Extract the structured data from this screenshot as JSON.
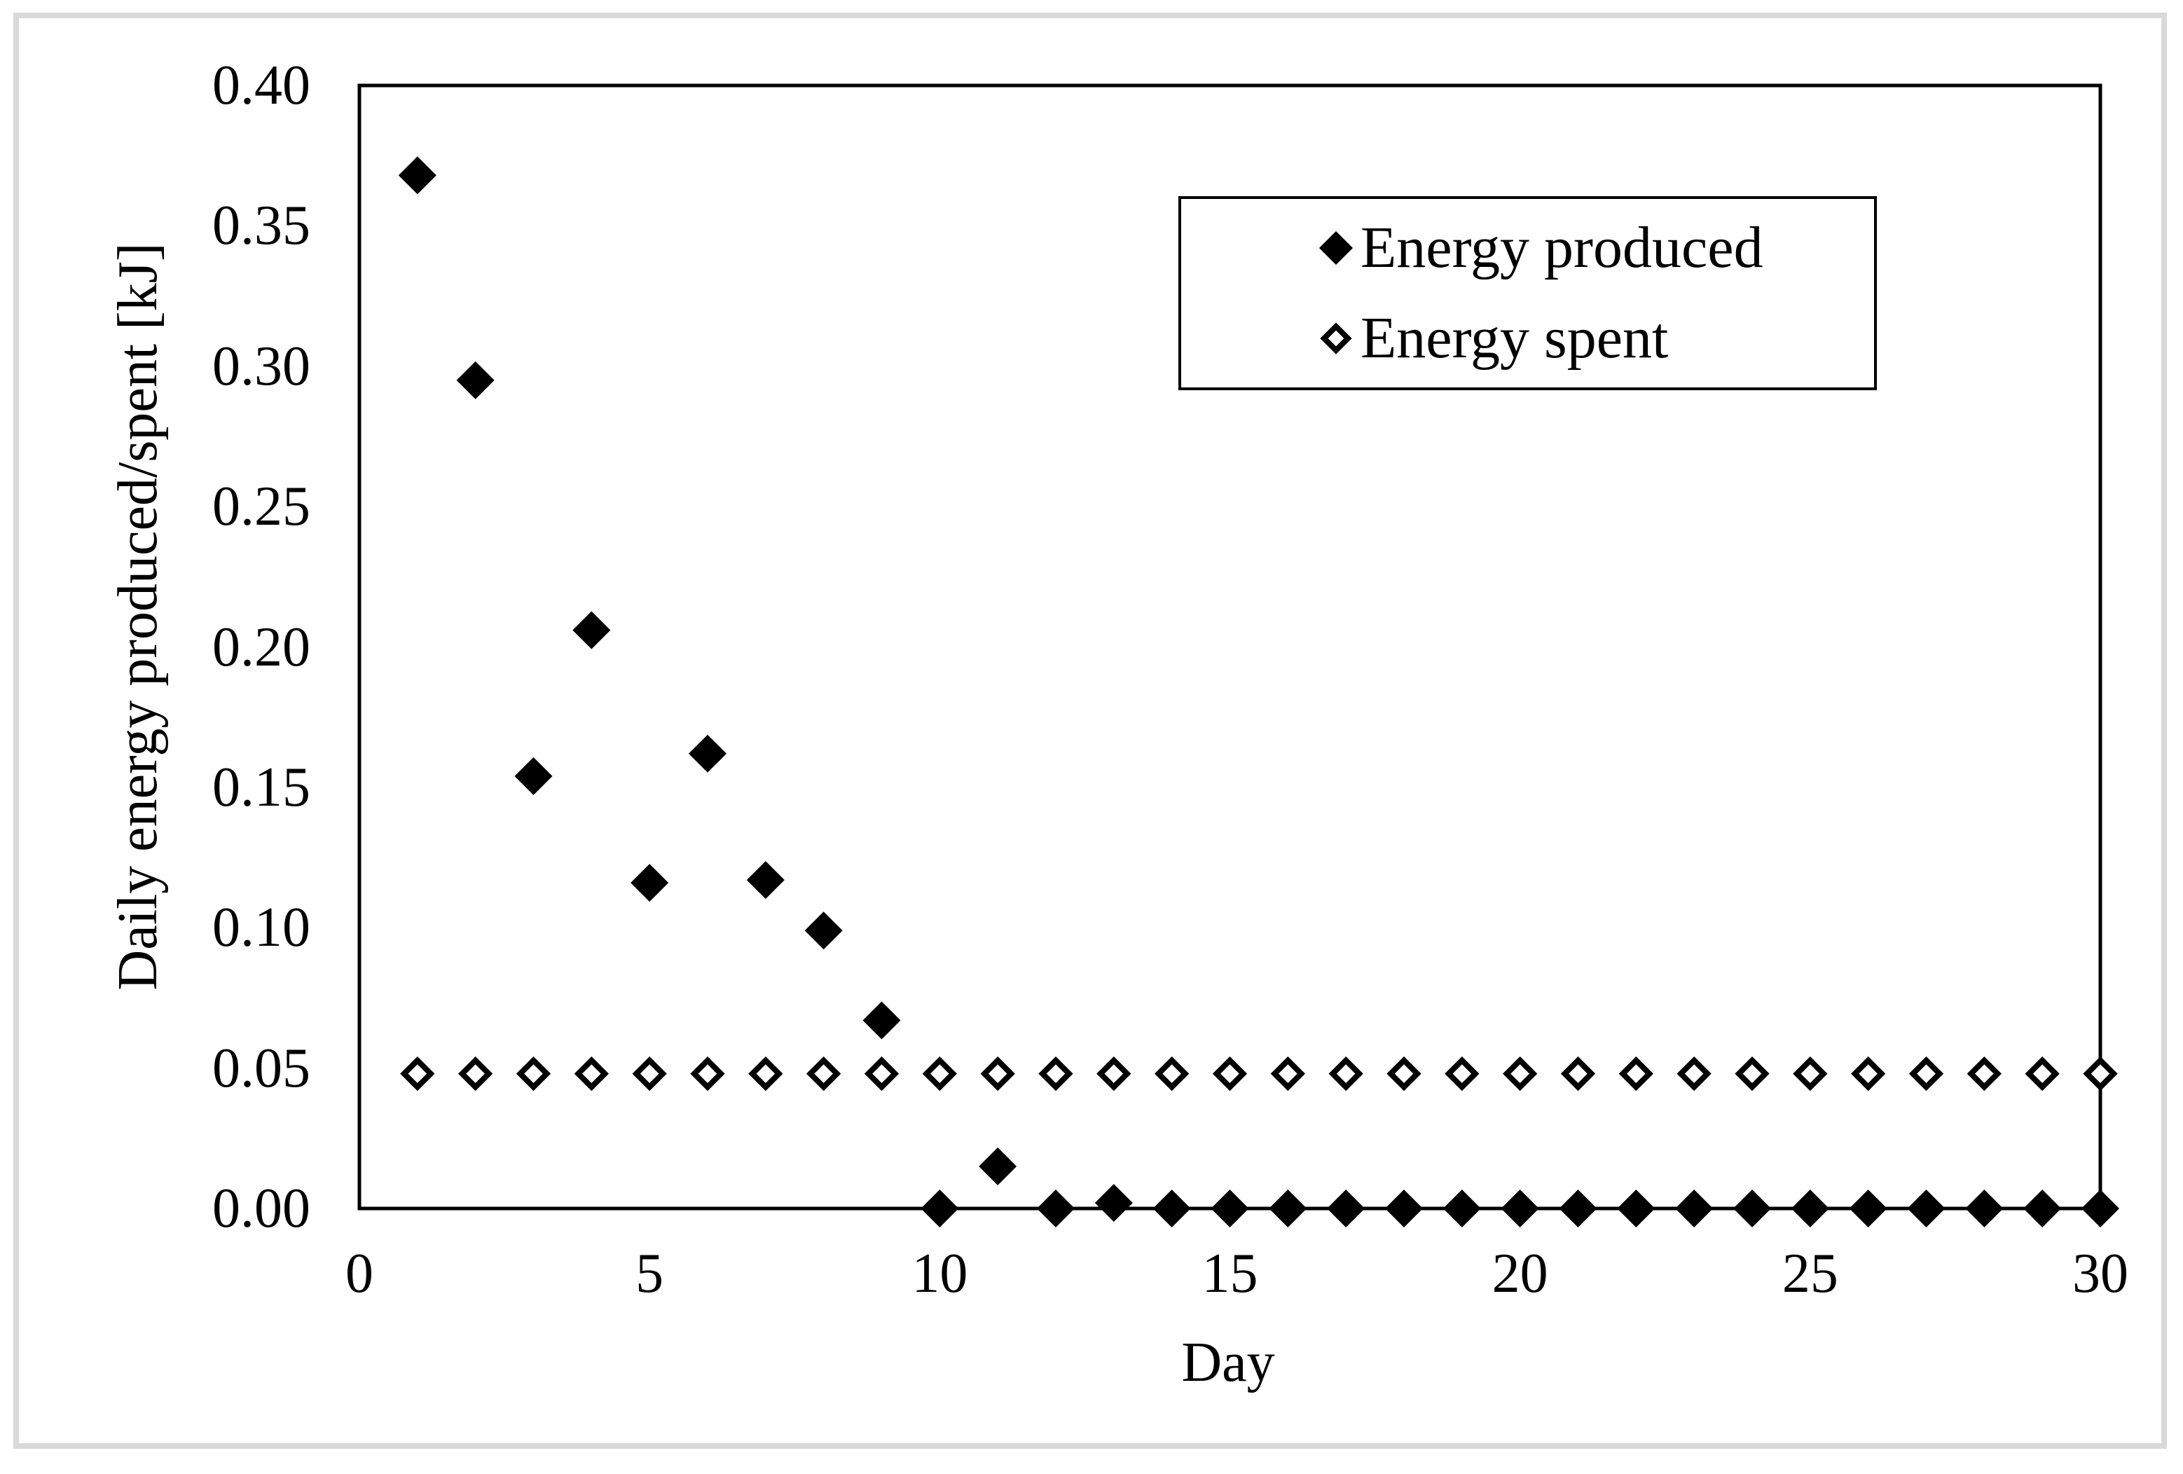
{
  "figure": {
    "background_color": "#ffffff",
    "frame_color": "#d9d9d9",
    "ink_color": "#000000"
  },
  "chart_data": {
    "type": "scatter",
    "title": "",
    "xlabel": "Day",
    "ylabel": "Daily energy produced/spent [kJ]",
    "xlim": [
      0,
      30
    ],
    "ylim": [
      0.0,
      0.4
    ],
    "grid": false,
    "plot_border": true,
    "legend_position": "inside upper right",
    "x_ticks": {
      "values": [
        0,
        5,
        10,
        15,
        20,
        25,
        30
      ],
      "labels": [
        "0",
        "5",
        "10",
        "15",
        "20",
        "25",
        "30"
      ]
    },
    "y_ticks": {
      "values": [
        0.0,
        0.05,
        0.1,
        0.15,
        0.2,
        0.25,
        0.3,
        0.35,
        0.4
      ],
      "labels": [
        "0.00",
        "0.05",
        "0.10",
        "0.15",
        "0.20",
        "0.25",
        "0.30",
        "0.35",
        "0.40"
      ]
    },
    "x": [
      1,
      2,
      3,
      4,
      5,
      6,
      7,
      8,
      9,
      10,
      11,
      12,
      13,
      14,
      15,
      16,
      17,
      18,
      19,
      20,
      21,
      22,
      23,
      24,
      25,
      26,
      27,
      28,
      29,
      30
    ],
    "series": [
      {
        "name": "Energy produced",
        "marker": "filled-diamond",
        "color": "#000000",
        "values": [
          0.368,
          0.295,
          0.154,
          0.206,
          0.116,
          0.162,
          0.117,
          0.099,
          0.067,
          0.0,
          0.015,
          0.0,
          0.002,
          0.0,
          0.0,
          0.0,
          0.0,
          0.0,
          0.0,
          0.0,
          0.0,
          0.0,
          0.0,
          0.0,
          0.0,
          0.0,
          0.0,
          0.0,
          0.0,
          0.0
        ]
      },
      {
        "name": "Energy spent",
        "marker": "open-diamond",
        "color": "#000000",
        "values": [
          0.048,
          0.048,
          0.048,
          0.048,
          0.048,
          0.048,
          0.048,
          0.048,
          0.048,
          0.048,
          0.048,
          0.048,
          0.048,
          0.048,
          0.048,
          0.048,
          0.048,
          0.048,
          0.048,
          0.048,
          0.048,
          0.048,
          0.048,
          0.048,
          0.048,
          0.048,
          0.048,
          0.048,
          0.048,
          0.048
        ]
      }
    ]
  },
  "legend": {
    "items": [
      {
        "label": "Energy produced",
        "icon": "filled-diamond-icon"
      },
      {
        "label": "Energy spent",
        "icon": "open-diamond-icon"
      }
    ]
  }
}
